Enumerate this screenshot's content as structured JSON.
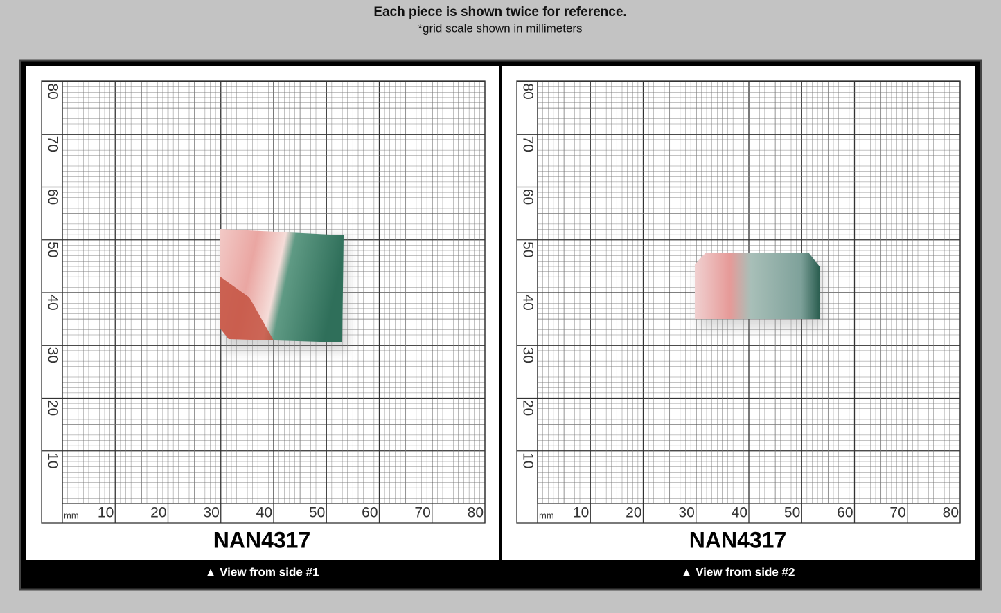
{
  "header": {
    "title": "Each piece is shown twice for reference.",
    "subtitle": "*grid scale shown in millimeters"
  },
  "scale": {
    "unit": "mm",
    "x": [
      10,
      20,
      30,
      40,
      50,
      60,
      70,
      80
    ],
    "y": [
      10,
      20,
      30,
      40,
      50,
      60,
      70,
      80
    ]
  },
  "panels": [
    {
      "label": "NAN4317",
      "caption": "▲ View from side #1"
    },
    {
      "label": "NAN4317",
      "caption": "▲ View from side #2"
    }
  ]
}
